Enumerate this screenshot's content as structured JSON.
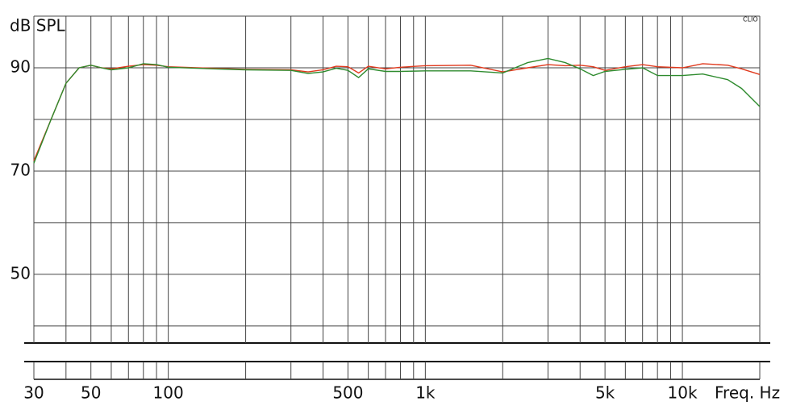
{
  "chart_data": {
    "type": "line",
    "y_label": "dB SPL",
    "x_label": "Freq. Hz",
    "logo": "CLIO",
    "x": [
      30,
      35,
      40,
      45,
      50,
      55,
      60,
      70,
      80,
      90,
      100,
      150,
      200,
      300,
      350,
      400,
      450,
      500,
      550,
      600,
      700,
      800,
      1000,
      1500,
      2000,
      2500,
      3000,
      3500,
      4000,
      4500,
      5000,
      6000,
      7000,
      8000,
      10000,
      12000,
      15000,
      17000,
      20000
    ],
    "series": [
      {
        "color": "#e03a1e",
        "values": [
          72,
          80,
          87,
          90,
          90.5,
          90,
          89.8,
          90.3,
          90.6,
          90.5,
          90.2,
          89.9,
          89.7,
          89.6,
          89.2,
          89.6,
          90.3,
          90.2,
          89,
          90.3,
          89.8,
          90.1,
          90.4,
          90.5,
          89.2,
          90,
          90.6,
          90.4,
          90.5,
          90.2,
          89.5,
          90.2,
          90.6,
          90.2,
          90,
          90.8,
          90.5,
          89.8,
          88.7
        ]
      },
      {
        "color": "#2e8b2e",
        "values": [
          71.5,
          80,
          87,
          90,
          90.5,
          90,
          89.6,
          90,
          90.8,
          90.6,
          90.1,
          89.8,
          89.6,
          89.5,
          88.9,
          89.2,
          89.9,
          89.5,
          88.1,
          89.8,
          89.3,
          89.3,
          89.4,
          89.4,
          89,
          91,
          91.8,
          91,
          89.8,
          88.5,
          89.3,
          89.7,
          90,
          88.5,
          88.5,
          88.8,
          87.7,
          86,
          82.5
        ]
      }
    ],
    "xlim": [
      30,
      20000
    ],
    "xlog": true,
    "xticks": [
      30,
      50,
      100,
      500,
      {
        "value": 1000,
        "label": "1k"
      },
      {
        "value": 5000,
        "label": "5k"
      },
      {
        "value": 10000,
        "label": "10k"
      }
    ],
    "xgrid": [
      30,
      40,
      50,
      60,
      70,
      80,
      90,
      100,
      200,
      300,
      400,
      500,
      600,
      700,
      800,
      900,
      1000,
      2000,
      3000,
      4000,
      5000,
      6000,
      7000,
      8000,
      9000,
      10000,
      20000
    ],
    "ylim": [
      36.7,
      100
    ],
    "yticks": [
      50,
      70,
      90
    ],
    "ygrid": [
      40,
      50,
      60,
      70,
      80,
      90,
      100
    ]
  }
}
